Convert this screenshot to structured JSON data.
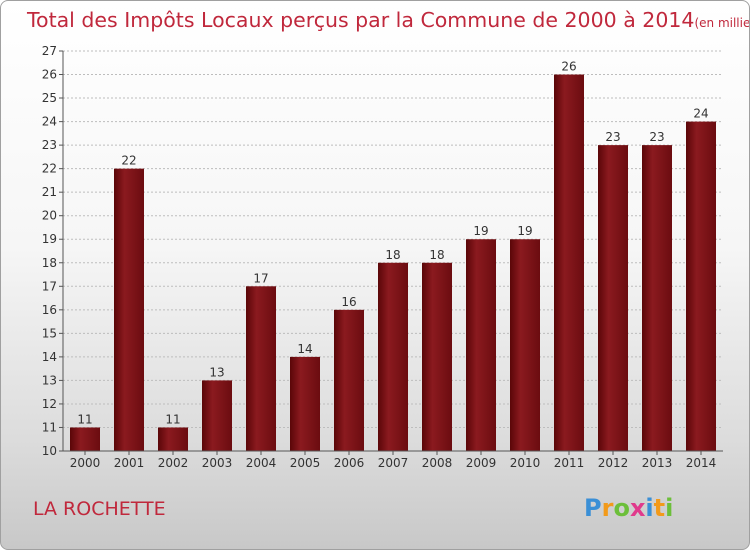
{
  "chart_data": {
    "type": "bar",
    "title": "Total des Impôts Locaux perçus par la Commune de 2000 à 2014",
    "title_unit": "(en milliers d'€)",
    "categories": [
      "2000",
      "2001",
      "2002",
      "2003",
      "2004",
      "2005",
      "2006",
      "2007",
      "2008",
      "2009",
      "2010",
      "2011",
      "2012",
      "2013",
      "2014"
    ],
    "values": [
      11,
      22,
      11,
      13,
      17,
      14,
      16,
      18,
      18,
      19,
      19,
      26,
      23,
      23,
      24
    ],
    "ylim": [
      10,
      27
    ],
    "yticks": [
      10,
      11,
      12,
      13,
      14,
      15,
      16,
      17,
      18,
      19,
      20,
      21,
      22,
      23,
      24,
      25,
      26,
      27
    ],
    "xlabel": "",
    "ylabel": "",
    "bar_color": "#8b1a1f",
    "bar_color_dark": "#5a0608"
  },
  "footer": {
    "commune": "LA ROCHETTE",
    "logo_letters": [
      "P",
      "r",
      "o",
      "x",
      "i",
      "t",
      "i"
    ],
    "logo_colors": [
      "#3a8fd6",
      "#f29a1a",
      "#6cbf3a",
      "#e03a8c",
      "#3a8fd6",
      "#f29a1a",
      "#6cbf3a"
    ]
  }
}
